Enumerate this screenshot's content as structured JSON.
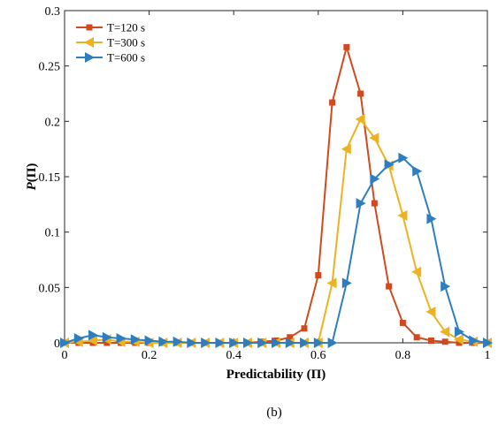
{
  "chart_data": {
    "type": "line",
    "xlabel": "Predictability (Π)",
    "ylabel_main": "P",
    "ylabel_arg": "(Π)",
    "caption": "(b)",
    "xlim": [
      0,
      1
    ],
    "ylim": [
      0,
      0.3
    ],
    "xticks": [
      0,
      0.2,
      0.4,
      0.6,
      0.8,
      1
    ],
    "xtick_labels": [
      "0",
      "0.2",
      "0.4",
      "0.6",
      "0.8",
      "1"
    ],
    "yticks": [
      0,
      0.05,
      0.1,
      0.15,
      0.2,
      0.25,
      0.3
    ],
    "ytick_labels": [
      "0",
      "0.05",
      "0.1",
      "0.15",
      "0.2",
      "0.25",
      "0.3"
    ],
    "grid": false,
    "legend_position": "top-left",
    "series": [
      {
        "name": "T=120 s",
        "color": "#d04a1f",
        "marker": "square",
        "x": [
          0.0,
          0.033,
          0.067,
          0.1,
          0.133,
          0.167,
          0.2,
          0.233,
          0.267,
          0.3,
          0.333,
          0.367,
          0.4,
          0.433,
          0.467,
          0.5,
          0.533,
          0.567,
          0.6,
          0.633,
          0.667,
          0.7,
          0.733,
          0.767,
          0.8,
          0.833,
          0.867,
          0.9,
          0.933,
          0.967,
          1.0
        ],
        "y": [
          0.0,
          0.0,
          0.0,
          0.0,
          0.0,
          0.0,
          0.0,
          0.0,
          0.0,
          0.0,
          0.0,
          0.0,
          0.0,
          0.0,
          0.001,
          0.002,
          0.005,
          0.013,
          0.061,
          0.217,
          0.267,
          0.225,
          0.126,
          0.051,
          0.018,
          0.005,
          0.002,
          0.001,
          0.0,
          0.0,
          0.0
        ]
      },
      {
        "name": "T=300 s",
        "color": "#edb21f",
        "marker": "triangle-left",
        "x": [
          0.0,
          0.033,
          0.067,
          0.1,
          0.133,
          0.167,
          0.2,
          0.233,
          0.267,
          0.3,
          0.333,
          0.367,
          0.4,
          0.433,
          0.467,
          0.5,
          0.533,
          0.567,
          0.6,
          0.633,
          0.667,
          0.7,
          0.733,
          0.767,
          0.8,
          0.833,
          0.867,
          0.9,
          0.933,
          0.967,
          1.0
        ],
        "y": [
          0.0,
          0.001,
          0.002,
          0.003,
          0.001,
          0.001,
          0.0,
          0.0,
          0.0,
          0.0,
          0.0,
          0.0,
          0.0,
          0.0,
          0.0,
          0.0,
          0.0,
          0.0,
          0.0,
          0.054,
          0.175,
          0.202,
          0.185,
          0.16,
          0.115,
          0.064,
          0.028,
          0.01,
          0.003,
          0.001,
          0.0
        ]
      },
      {
        "name": "T=600 s",
        "color": "#2e7ebf",
        "marker": "triangle-right",
        "x": [
          0.0,
          0.033,
          0.067,
          0.1,
          0.133,
          0.167,
          0.2,
          0.233,
          0.267,
          0.3,
          0.333,
          0.367,
          0.4,
          0.433,
          0.467,
          0.5,
          0.533,
          0.567,
          0.6,
          0.633,
          0.667,
          0.7,
          0.733,
          0.767,
          0.8,
          0.833,
          0.867,
          0.9,
          0.933,
          0.967,
          1.0
        ],
        "y": [
          0.0,
          0.004,
          0.007,
          0.005,
          0.004,
          0.003,
          0.002,
          0.001,
          0.001,
          0.0,
          0.0,
          0.0,
          0.0,
          0.0,
          0.0,
          0.0,
          0.0,
          0.0,
          0.0,
          0.0,
          0.054,
          0.126,
          0.148,
          0.161,
          0.167,
          0.155,
          0.112,
          0.051,
          0.01,
          0.002,
          0.0
        ]
      }
    ]
  }
}
